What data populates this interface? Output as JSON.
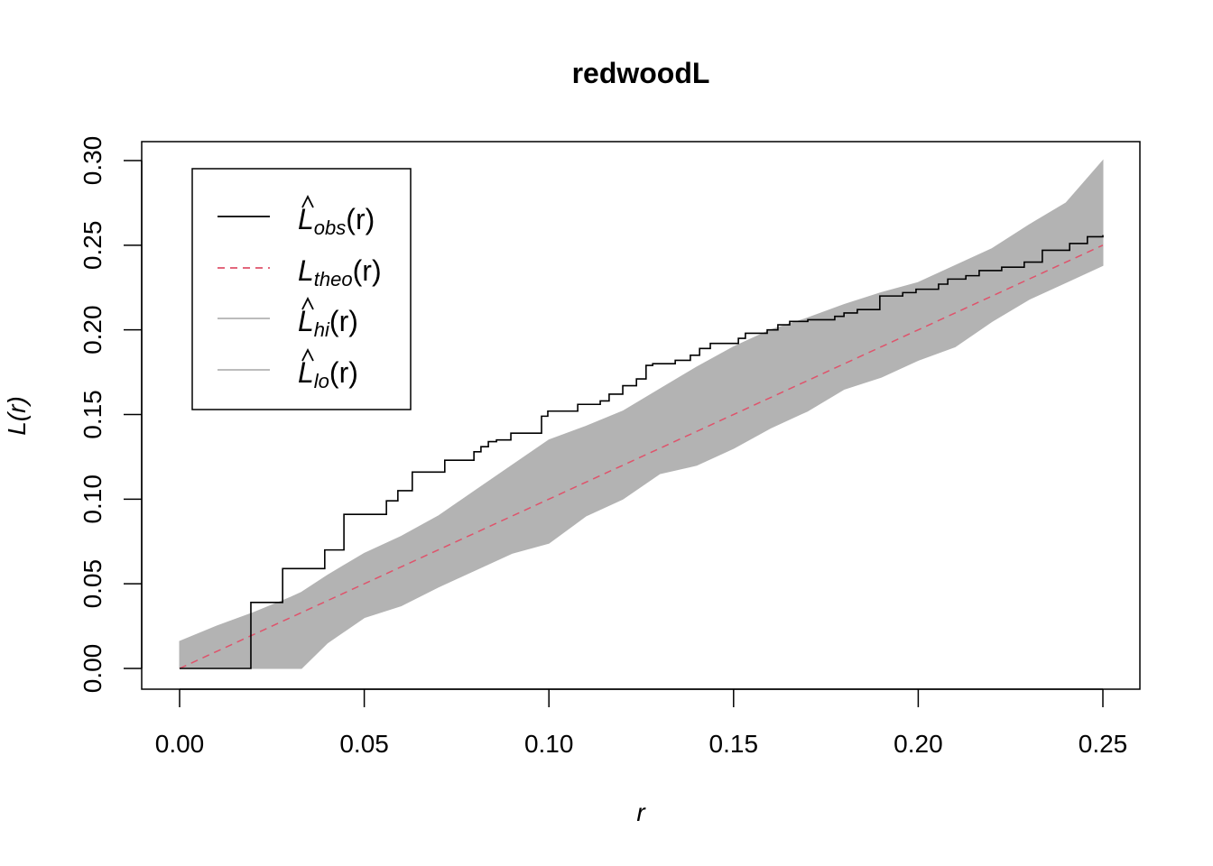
{
  "chart_data": {
    "type": "line",
    "title": "redwoodL",
    "xlabel": "r",
    "ylabel": "L(r)",
    "xlim": [
      0,
      0.25
    ],
    "ylim": [
      0,
      0.3
    ],
    "x_ticks": [
      "0.00",
      "0.05",
      "0.10",
      "0.15",
      "0.20",
      "0.25"
    ],
    "y_ticks": [
      "0.00",
      "0.05",
      "0.10",
      "0.15",
      "0.20",
      "0.25",
      "0.30"
    ],
    "grid": false,
    "legend_position": "top-left",
    "colors": {
      "obs": "#000000",
      "theo": "#DF536B",
      "envelope": "#B3B3B3"
    },
    "legend": [
      {
        "key": "obs",
        "main": "L",
        "hat": true,
        "sub": "obs",
        "tail": "(r)"
      },
      {
        "key": "theo",
        "main": "L",
        "hat": false,
        "sub": "theo",
        "tail": "(r)"
      },
      {
        "key": "hi",
        "main": "L",
        "hat": true,
        "sub": "hi",
        "tail": "(r)"
      },
      {
        "key": "lo",
        "main": "L",
        "hat": true,
        "sub": "lo",
        "tail": "(r)"
      }
    ],
    "obs_steps": {
      "r": [
        0,
        0.0193,
        0.0279,
        0.0393,
        0.0445,
        0.056,
        0.0591,
        0.063,
        0.0718,
        0.0797,
        0.0816,
        0.0836,
        0.0858,
        0.0897,
        0.098,
        0.0997,
        0.1078,
        0.1139,
        0.1163,
        0.12,
        0.1237,
        0.1263,
        0.1281,
        0.1342,
        0.1383,
        0.1408,
        0.1437,
        0.1513,
        0.1532,
        0.1591,
        0.162,
        0.1652,
        0.1701,
        0.1774,
        0.1799,
        0.1835,
        0.1896,
        0.1958,
        0.1994,
        0.2055,
        0.208,
        0.2129,
        0.2165,
        0.2226,
        0.2287,
        0.2336,
        0.241,
        0.2458,
        0.25
      ],
      "L": [
        0,
        0.039,
        0.059,
        0.07,
        0.091,
        0.099,
        0.105,
        0.116,
        0.123,
        0.128,
        0.131,
        0.134,
        0.135,
        0.139,
        0.149,
        0.152,
        0.156,
        0.158,
        0.162,
        0.167,
        0.171,
        0.179,
        0.18,
        0.182,
        0.185,
        0.189,
        0.192,
        0.195,
        0.198,
        0.2,
        0.203,
        0.205,
        0.206,
        0.208,
        0.21,
        0.212,
        0.22,
        0.222,
        0.224,
        0.227,
        0.23,
        0.232,
        0.235,
        0.237,
        0.24,
        0.247,
        0.251,
        0.255,
        0.256
      ]
    },
    "theo": {
      "r": [
        0,
        0.25
      ],
      "L": [
        0,
        0.25
      ]
    },
    "envelope": {
      "r": [
        0,
        0.01,
        0.02,
        0.03,
        0.033,
        0.04,
        0.05,
        0.06,
        0.07,
        0.08,
        0.09,
        0.1,
        0.11,
        0.12,
        0.13,
        0.14,
        0.15,
        0.16,
        0.17,
        0.18,
        0.19,
        0.2,
        0.21,
        0.22,
        0.23,
        0.24,
        0.25
      ],
      "hi": [
        0.016,
        0.025,
        0.033,
        0.042,
        0.045,
        0.055,
        0.068,
        0.078,
        0.09,
        0.105,
        0.12,
        0.135,
        0.143,
        0.152,
        0.165,
        0.178,
        0.19,
        0.2,
        0.207,
        0.215,
        0.222,
        0.228,
        0.238,
        0.248,
        0.262,
        0.275,
        0.3
      ],
      "lo": [
        0,
        0,
        0,
        0,
        0,
        0.015,
        0.03,
        0.037,
        0.048,
        0.058,
        0.068,
        0.074,
        0.09,
        0.1,
        0.115,
        0.12,
        0.13,
        0.142,
        0.152,
        0.165,
        0.172,
        0.182,
        0.19,
        0.205,
        0.218,
        0.228,
        0.238
      ]
    }
  }
}
